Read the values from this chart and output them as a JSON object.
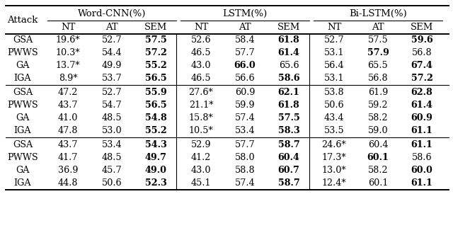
{
  "col_groups": [
    "Word-CNN(%)",
    "LSTM(%)",
    "Bi-LSTM(%)"
  ],
  "sub_cols": [
    "NT",
    "AT",
    "SEM"
  ],
  "row_label": "Attack",
  "sections": [
    [
      [
        "GSA",
        "19.6*",
        "52.7",
        "57.5",
        "52.6",
        "58.4",
        "61.8",
        "52.7",
        "57.5",
        "59.6"
      ],
      [
        "PWWS",
        "10.3*",
        "54.4",
        "57.2",
        "46.5",
        "57.7",
        "61.4",
        "53.1",
        "57.9",
        "56.8"
      ],
      [
        "GA",
        "13.7*",
        "49.9",
        "55.2",
        "43.0",
        "66.0",
        "65.6",
        "56.4",
        "65.5",
        "67.4"
      ],
      [
        "IGA",
        "8.9*",
        "53.7",
        "56.5",
        "46.5",
        "56.6",
        "58.6",
        "53.1",
        "56.8",
        "57.2"
      ]
    ],
    [
      [
        "GSA",
        "47.2",
        "52.7",
        "55.9",
        "27.6*",
        "60.9",
        "62.1",
        "53.8",
        "61.9",
        "62.8"
      ],
      [
        "PWWS",
        "43.7",
        "54.7",
        "56.5",
        "21.1*",
        "59.9",
        "61.8",
        "50.6",
        "59.2",
        "61.4"
      ],
      [
        "GA",
        "41.0",
        "48.5",
        "54.8",
        "15.8*",
        "57.4",
        "57.5",
        "43.4",
        "58.2",
        "60.9"
      ],
      [
        "IGA",
        "47.8",
        "53.0",
        "55.2",
        "10.5*",
        "53.4",
        "58.3",
        "53.5",
        "59.0",
        "61.1"
      ]
    ],
    [
      [
        "GSA",
        "43.7",
        "53.4",
        "54.3",
        "52.9",
        "57.7",
        "58.7",
        "24.6*",
        "60.4",
        "61.1"
      ],
      [
        "PWWS",
        "41.7",
        "48.5",
        "49.7",
        "41.2",
        "58.0",
        "60.4",
        "17.3*",
        "60.1",
        "58.6"
      ],
      [
        "GA",
        "36.9",
        "45.7",
        "49.0",
        "43.0",
        "58.8",
        "60.7",
        "13.0*",
        "58.2",
        "60.0"
      ],
      [
        "IGA",
        "44.8",
        "50.6",
        "52.3",
        "45.1",
        "57.4",
        "58.7",
        "12.4*",
        "60.1",
        "61.1"
      ]
    ]
  ],
  "bold": {
    "0_0": [
      false,
      false,
      false,
      true,
      false,
      false,
      true,
      false,
      false,
      true
    ],
    "0_1": [
      false,
      false,
      false,
      true,
      false,
      false,
      true,
      false,
      true,
      false
    ],
    "0_2": [
      false,
      false,
      false,
      true,
      false,
      true,
      false,
      false,
      false,
      true
    ],
    "0_3": [
      false,
      false,
      false,
      true,
      false,
      false,
      true,
      false,
      false,
      true
    ],
    "1_0": [
      false,
      false,
      false,
      true,
      false,
      false,
      true,
      false,
      false,
      true
    ],
    "1_1": [
      false,
      false,
      false,
      true,
      false,
      false,
      true,
      false,
      false,
      true
    ],
    "1_2": [
      false,
      false,
      false,
      true,
      false,
      false,
      true,
      false,
      false,
      true
    ],
    "1_3": [
      false,
      false,
      false,
      true,
      false,
      false,
      true,
      false,
      false,
      true
    ],
    "2_0": [
      false,
      false,
      false,
      true,
      false,
      false,
      true,
      false,
      false,
      true
    ],
    "2_1": [
      false,
      false,
      false,
      true,
      false,
      false,
      true,
      false,
      true,
      false
    ],
    "2_2": [
      false,
      false,
      false,
      true,
      false,
      false,
      true,
      false,
      false,
      true
    ],
    "2_3": [
      false,
      false,
      false,
      true,
      false,
      false,
      true,
      false,
      false,
      true
    ]
  },
  "bg_color": "#ffffff"
}
